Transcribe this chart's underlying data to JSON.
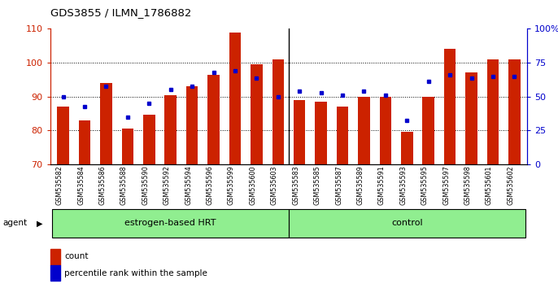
{
  "title": "GDS3855 / ILMN_1786882",
  "samples": [
    "GSM535582",
    "GSM535584",
    "GSM535586",
    "GSM535588",
    "GSM535590",
    "GSM535592",
    "GSM535594",
    "GSM535596",
    "GSM535599",
    "GSM535600",
    "GSM535603",
    "GSM535583",
    "GSM535585",
    "GSM535587",
    "GSM535589",
    "GSM535591",
    "GSM535593",
    "GSM535595",
    "GSM535597",
    "GSM535598",
    "GSM535601",
    "GSM535602"
  ],
  "red_values": [
    87,
    83,
    94,
    80.5,
    84.5,
    90.5,
    93,
    96.5,
    109,
    99.5,
    101,
    89,
    88.5,
    87,
    90,
    90,
    79.5,
    90,
    104,
    97,
    101,
    101
  ],
  "blue_values": [
    90,
    87,
    93,
    84,
    88,
    92,
    93,
    97,
    97.5,
    95.5,
    90,
    91.5,
    91,
    90.5,
    91.5,
    90.5,
    83,
    94.5,
    96.5,
    95.5,
    96,
    96
  ],
  "group1_label": "estrogen-based HRT",
  "group2_label": "control",
  "group1_count": 11,
  "group2_count": 11,
  "ylim_left": [
    70,
    110
  ],
  "yticks_left": [
    70,
    80,
    90,
    100,
    110
  ],
  "ylim_right": [
    0,
    100
  ],
  "yticks_right": [
    0,
    25,
    50,
    75,
    100
  ],
  "yright_labels": [
    "0",
    "25",
    "50",
    "75",
    "100%"
  ],
  "red_color": "#cc2200",
  "blue_color": "#0000cc",
  "group_bg": "#90ee90",
  "ylabel_left_color": "#cc2200",
  "ylabel_right_color": "#0000cc",
  "legend_count_label": "count",
  "legend_pct_label": "percentile rank within the sample"
}
